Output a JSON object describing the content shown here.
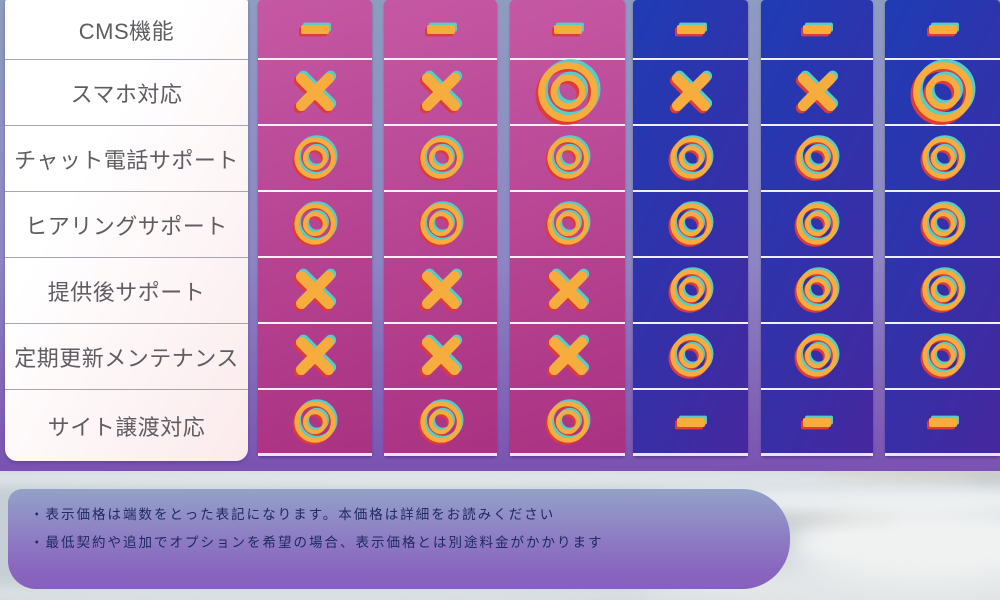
{
  "table": {
    "feature_rows": [
      {
        "label": "CMS機能",
        "values": [
          "dash",
          "dash",
          "dash",
          "dash",
          "dash",
          "dash"
        ]
      },
      {
        "label": "スマホ対応",
        "values": [
          "cross",
          "cross",
          "circle-large",
          "cross",
          "cross",
          "circle-large"
        ]
      },
      {
        "label": "チャット電話サポート",
        "values": [
          "circle",
          "circle",
          "circle",
          "circle",
          "circle",
          "circle"
        ]
      },
      {
        "label": "ヒアリングサポート",
        "values": [
          "circle",
          "circle",
          "circle",
          "circle",
          "circle",
          "circle"
        ]
      },
      {
        "label": "提供後サポート",
        "values": [
          "cross",
          "cross",
          "cross",
          "circle",
          "circle",
          "circle"
        ]
      },
      {
        "label": "定期更新メンテナンス",
        "values": [
          "cross",
          "cross",
          "cross",
          "circle",
          "circle",
          "circle"
        ]
      },
      {
        "label": "サイト譲渡対応",
        "values": [
          "circle",
          "circle",
          "circle",
          "dash",
          "dash",
          "dash"
        ]
      }
    ],
    "column_styles": [
      "pink",
      "pink",
      "pink",
      "blue",
      "blue",
      "blue"
    ],
    "symbol_legend": {
      "dash": "dash-icon",
      "cross": "cross-icon",
      "circle": "double-circle-icon",
      "circle-large": "double-circle-icon"
    }
  },
  "notes": {
    "lines": [
      "・表示価格は端数をとった表記になります。本価格は詳細をお読みください",
      "・最低契約や追加でオプションを希望の場合、表示価格とは別途料金がかかります"
    ]
  },
  "colors": {
    "pink_column_top": "#c558a4",
    "pink_column_bottom": "#a93181",
    "blue_column_left": "#1e3cb5",
    "blue_column_right": "#46279e",
    "symbol_orange": "#f7ac3e",
    "symbol_red": "#df3a35",
    "symbol_teal": "#57cdc9",
    "band_top": "#8e9cc0",
    "band_bottom": "#7a52b1",
    "note_top": "#93a2c8",
    "note_bottom": "#8a67c0",
    "label_text": "#5f5d63",
    "note_text": "#1e2a60"
  }
}
